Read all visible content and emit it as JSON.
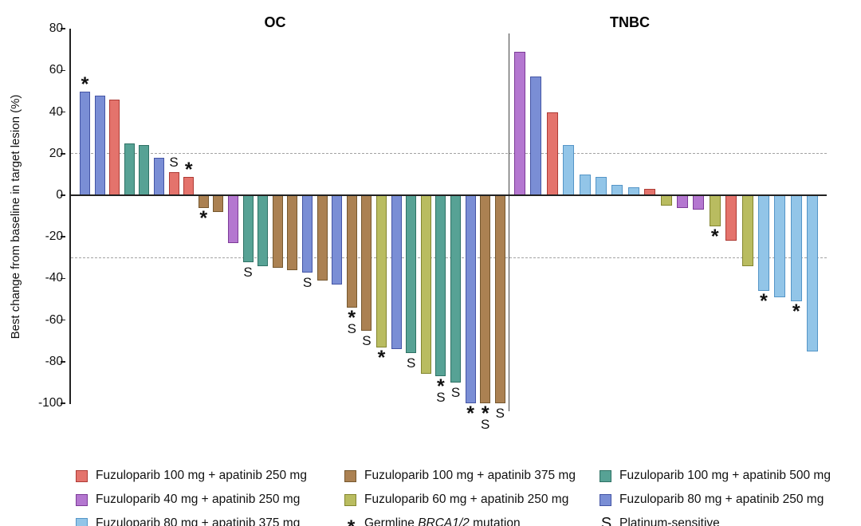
{
  "chart_data": {
    "type": "bar",
    "subtype": "waterfall",
    "ylabel": "Best change from baseline in target lesion (%)",
    "ylim": [
      -100,
      80
    ],
    "yticks": [
      80,
      60,
      40,
      20,
      0,
      -20,
      -40,
      -60,
      -80,
      -100
    ],
    "reference_lines": [
      20,
      -30
    ],
    "grid": "dashed-reference-only",
    "legend_position": "bottom",
    "series_colors": {
      "fz100_ap250": {
        "fill": "#E4736C",
        "stroke": "#AE3B35"
      },
      "fz100_ap375": {
        "fill": "#AB8152",
        "stroke": "#76582F"
      },
      "fz100_ap500": {
        "fill": "#57A295",
        "stroke": "#2F7265"
      },
      "fz40_ap250": {
        "fill": "#B477D0",
        "stroke": "#7D3C98"
      },
      "fz60_ap250": {
        "fill": "#B9BC60",
        "stroke": "#83862F"
      },
      "fz80_ap250": {
        "fill": "#7A8ED5",
        "stroke": "#4455A5"
      },
      "fz80_ap375": {
        "fill": "#92C5E8",
        "stroke": "#5495C7"
      }
    },
    "groups": [
      {
        "name": "OC",
        "bars": [
          {
            "value": 50,
            "arm": "fz80_ap250",
            "marker": "*"
          },
          {
            "value": 48,
            "arm": "fz80_ap250",
            "marker": ""
          },
          {
            "value": 46,
            "arm": "fz100_ap250",
            "marker": ""
          },
          {
            "value": 25,
            "arm": "fz100_ap500",
            "marker": ""
          },
          {
            "value": 24,
            "arm": "fz100_ap500",
            "marker": ""
          },
          {
            "value": 18,
            "arm": "fz80_ap250",
            "marker": ""
          },
          {
            "value": 11,
            "arm": "fz100_ap250",
            "marker": "S"
          },
          {
            "value": 9,
            "arm": "fz100_ap250",
            "marker": "*"
          },
          {
            "value": -6,
            "arm": "fz100_ap375",
            "marker": "*"
          },
          {
            "value": -8,
            "arm": "fz100_ap375",
            "marker": ""
          },
          {
            "value": -23,
            "arm": "fz40_ap250",
            "marker": ""
          },
          {
            "value": -32,
            "arm": "fz100_ap500",
            "marker": "S"
          },
          {
            "value": -34,
            "arm": "fz100_ap500",
            "marker": ""
          },
          {
            "value": -35,
            "arm": "fz100_ap375",
            "marker": ""
          },
          {
            "value": -36,
            "arm": "fz100_ap375",
            "marker": ""
          },
          {
            "value": -37,
            "arm": "fz80_ap250",
            "marker": "S"
          },
          {
            "value": -41,
            "arm": "fz100_ap375",
            "marker": ""
          },
          {
            "value": -43,
            "arm": "fz80_ap250",
            "marker": ""
          },
          {
            "value": -54,
            "arm": "fz100_ap375",
            "marker": "*S"
          },
          {
            "value": -65,
            "arm": "fz100_ap375",
            "marker": "S"
          },
          {
            "value": -73,
            "arm": "fz60_ap250",
            "marker": "*"
          },
          {
            "value": -74,
            "arm": "fz80_ap250",
            "marker": ""
          },
          {
            "value": -76,
            "arm": "fz100_ap500",
            "marker": "S"
          },
          {
            "value": -86,
            "arm": "fz60_ap250",
            "marker": ""
          },
          {
            "value": -87,
            "arm": "fz100_ap500",
            "marker": "*S"
          },
          {
            "value": -90,
            "arm": "fz100_ap500",
            "marker": "S"
          },
          {
            "value": -100,
            "arm": "fz80_ap250",
            "marker": "*"
          },
          {
            "value": -100,
            "arm": "fz100_ap375",
            "marker": "*S"
          },
          {
            "value": -100,
            "arm": "fz100_ap375",
            "marker": "S"
          }
        ]
      },
      {
        "name": "TNBC",
        "bars": [
          {
            "value": 69,
            "arm": "fz40_ap250",
            "marker": ""
          },
          {
            "value": 57,
            "arm": "fz80_ap250",
            "marker": ""
          },
          {
            "value": 40,
            "arm": "fz100_ap250",
            "marker": ""
          },
          {
            "value": 24,
            "arm": "fz80_ap375",
            "marker": ""
          },
          {
            "value": 10,
            "arm": "fz80_ap375",
            "marker": ""
          },
          {
            "value": 9,
            "arm": "fz80_ap375",
            "marker": ""
          },
          {
            "value": 5,
            "arm": "fz80_ap375",
            "marker": ""
          },
          {
            "value": 4,
            "arm": "fz80_ap375",
            "marker": ""
          },
          {
            "value": 3,
            "arm": "fz100_ap250",
            "marker": ""
          },
          {
            "value": -5,
            "arm": "fz60_ap250",
            "marker": ""
          },
          {
            "value": -6,
            "arm": "fz40_ap250",
            "marker": ""
          },
          {
            "value": -7,
            "arm": "fz40_ap250",
            "marker": ""
          },
          {
            "value": -15,
            "arm": "fz60_ap250",
            "marker": "*"
          },
          {
            "value": -22,
            "arm": "fz100_ap250",
            "marker": ""
          },
          {
            "value": -34,
            "arm": "fz60_ap250",
            "marker": ""
          },
          {
            "value": -46,
            "arm": "fz80_ap375",
            "marker": "*"
          },
          {
            "value": -49,
            "arm": "fz80_ap375",
            "marker": ""
          },
          {
            "value": -51,
            "arm": "fz80_ap375",
            "marker": "*"
          },
          {
            "value": -75,
            "arm": "fz80_ap375",
            "marker": ""
          }
        ]
      }
    ]
  },
  "legend": {
    "columns": [
      {
        "items": [
          {
            "type": "swatch",
            "arm": "fz100_ap250",
            "label": "Fuzuloparib 100 mg + apatinib 250 mg"
          },
          {
            "type": "swatch",
            "arm": "fz40_ap250",
            "label": "Fuzuloparib 40 mg + apatinib 250 mg"
          },
          {
            "type": "swatch",
            "arm": "fz80_ap375",
            "label": "Fuzuloparib 80 mg + apatinib 375 mg"
          }
        ]
      },
      {
        "items": [
          {
            "type": "swatch",
            "arm": "fz100_ap375",
            "label": "Fuzuloparib 100 mg + apatinib 375 mg"
          },
          {
            "type": "swatch",
            "arm": "fz60_ap250",
            "label": "Fuzuloparib 60 mg + apatinib 250 mg"
          },
          {
            "type": "symbol",
            "symbol": "*",
            "label_prefix": "Germline ",
            "label_italic": "BRCA1/2",
            "label_suffix": " mutation"
          }
        ]
      },
      {
        "items": [
          {
            "type": "swatch",
            "arm": "fz100_ap500",
            "label": "Fuzuloparib 100 mg + apatinib 500 mg"
          },
          {
            "type": "swatch",
            "arm": "fz80_ap250",
            "label": "Fuzuloparib 80 mg + apatinib 250 mg"
          },
          {
            "type": "symbol",
            "symbol": "S",
            "label": "Platinum-sensitive"
          }
        ]
      }
    ]
  }
}
